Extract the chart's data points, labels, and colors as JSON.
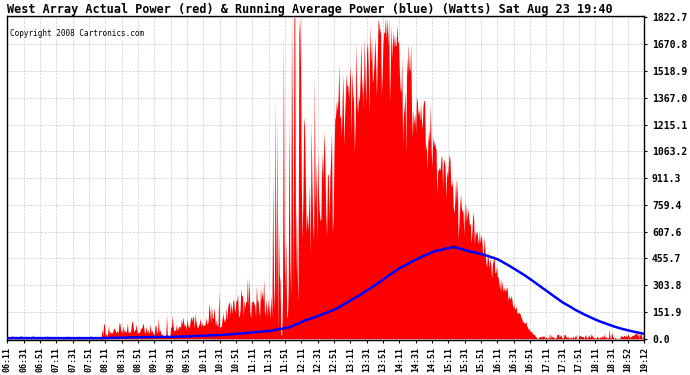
{
  "title": "West Array Actual Power (red) & Running Average Power (blue) (Watts) Sat Aug 23 19:40",
  "copyright": "Copyright 2008 Cartronics.com",
  "ymax": 1822.7,
  "yticks": [
    0.0,
    151.9,
    303.8,
    455.7,
    607.6,
    759.4,
    911.3,
    1063.2,
    1215.1,
    1367.0,
    1518.9,
    1670.8,
    1822.7
  ],
  "xtick_labels": [
    "06:11",
    "06:31",
    "06:51",
    "07:11",
    "07:31",
    "07:51",
    "08:11",
    "08:31",
    "08:51",
    "09:11",
    "09:31",
    "09:51",
    "10:11",
    "10:31",
    "10:51",
    "11:11",
    "11:31",
    "11:51",
    "12:11",
    "12:31",
    "12:51",
    "13:11",
    "13:31",
    "13:51",
    "14:11",
    "14:31",
    "14:51",
    "15:11",
    "15:31",
    "15:51",
    "16:11",
    "16:31",
    "16:51",
    "17:11",
    "17:31",
    "17:51",
    "18:11",
    "18:31",
    "18:52",
    "19:12"
  ],
  "bg_color": "#ffffff",
  "red_color": "#ff0000",
  "blue_color": "#0000ff",
  "grid_color": "#cccccc"
}
